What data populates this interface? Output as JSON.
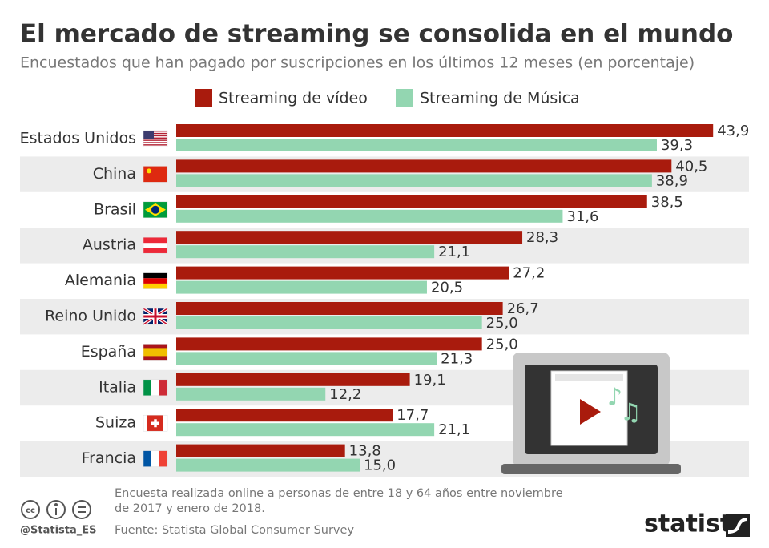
{
  "chart_data": {
    "type": "bar",
    "orientation": "horizontal",
    "title": "El mercado de streaming se consolida en el mundo",
    "subtitle": "Encuestados que han pagado por suscripciones en los últimos 12 meses (en porcentaje)",
    "categories": [
      "Estados Unidos",
      "China",
      "Brasil",
      "Austria",
      "Alemania",
      "Reino Unido",
      "España",
      "Italia",
      "Suiza",
      "Francia"
    ],
    "series": [
      {
        "name": "Streaming de vídeo",
        "color": "#a91b0d",
        "values": [
          43.9,
          40.5,
          38.5,
          28.3,
          27.2,
          26.7,
          25.0,
          19.1,
          17.7,
          13.8
        ],
        "value_labels": [
          "43,9",
          "40,5",
          "38,5",
          "28,3",
          "27,2",
          "26,7",
          "25,0",
          "19,1",
          "17,7",
          "13,8"
        ]
      },
      {
        "name": "Streaming de Música",
        "color": "#93d6b1",
        "values": [
          39.3,
          38.9,
          31.6,
          21.1,
          20.5,
          25.0,
          21.3,
          12.2,
          21.1,
          15.0
        ],
        "value_labels": [
          "39,3",
          "38,9",
          "31,6",
          "21,1",
          "20,5",
          "25,0",
          "21,3",
          "12,2",
          "21,1",
          "15,0"
        ]
      }
    ],
    "xlim": [
      0,
      45
    ],
    "note": "Encuesta realizada online a personas de entre 18 y 64 años entre noviembre de 2017 y enero de 2018.",
    "source": "Fuente: Statista Global Consumer Survey",
    "account": "@Statista_ES",
    "brand": "statista"
  }
}
